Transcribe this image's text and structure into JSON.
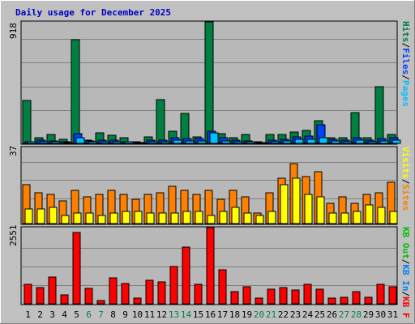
{
  "title": "Daily usage for December 2025",
  "colors": {
    "background": "#c0c0c0",
    "plot_bg": "#b8b8b8",
    "gridline": "#808080",
    "title": "#0000c0",
    "hits": "#008040",
    "files": "#0040ff",
    "pages": "#00c0ff",
    "visits": "#ffff00",
    "sites": "#ff8000",
    "kb_f": "#ff0000",
    "kb_in": "#0080ff",
    "kb_out": "#00c000",
    "weekend_day": "#008040",
    "weekday": "#000000"
  },
  "chart_data": [
    {
      "type": "bar",
      "name": "hits-files-pages",
      "ymax_label": "918",
      "ylim": [
        0,
        918
      ],
      "legend": [
        "Pages",
        "Files",
        "Hits"
      ],
      "categories": [
        "1",
        "2",
        "3",
        "4",
        "5",
        "6",
        "7",
        "8",
        "9",
        "10",
        "11",
        "12",
        "13",
        "14",
        "15",
        "16",
        "17",
        "18",
        "19",
        "20",
        "21",
        "22",
        "23",
        "24",
        "25",
        "26",
        "27",
        "28",
        "29",
        "30",
        "31"
      ],
      "weekend": [
        false,
        false,
        false,
        false,
        false,
        true,
        true,
        false,
        false,
        false,
        false,
        false,
        true,
        true,
        false,
        false,
        false,
        false,
        false,
        true,
        true,
        false,
        false,
        false,
        false,
        false,
        true,
        true,
        false,
        false,
        false
      ],
      "series": [
        {
          "name": "Hits",
          "color_key": "hits",
          "values": [
            325,
            40,
            70,
            30,
            785,
            25,
            80,
            60,
            45,
            15,
            50,
            330,
            90,
            225,
            50,
            918,
            75,
            40,
            70,
            10,
            65,
            65,
            85,
            95,
            170,
            45,
            40,
            235,
            45,
            430,
            70
          ]
        },
        {
          "name": "Files",
          "color_key": "files",
          "values": [
            15,
            25,
            20,
            10,
            75,
            20,
            25,
            25,
            15,
            8,
            25,
            25,
            45,
            35,
            35,
            90,
            40,
            25,
            20,
            8,
            25,
            30,
            50,
            55,
            140,
            30,
            25,
            40,
            25,
            35,
            40
          ]
        },
        {
          "name": "Pages",
          "color_key": "pages",
          "values": [
            10,
            15,
            15,
            8,
            40,
            12,
            15,
            15,
            10,
            5,
            15,
            15,
            25,
            20,
            20,
            80,
            20,
            15,
            12,
            5,
            15,
            20,
            30,
            30,
            45,
            20,
            15,
            25,
            15,
            20,
            25
          ]
        }
      ]
    },
    {
      "type": "bar",
      "name": "visits-sites",
      "ymax_label": "37",
      "ylim": [
        0,
        37
      ],
      "legend": [
        "Visits",
        "Sites"
      ],
      "categories": [
        "1",
        "2",
        "3",
        "4",
        "5",
        "6",
        "7",
        "8",
        "9",
        "10",
        "11",
        "12",
        "13",
        "14",
        "15",
        "16",
        "17",
        "18",
        "19",
        "20",
        "21",
        "22",
        "23",
        "24",
        "25",
        "26",
        "27",
        "28",
        "29",
        "30",
        "31"
      ],
      "series": [
        {
          "name": "Visits",
          "color_key": "visits",
          "values": [
            7,
            7,
            8,
            4,
            5,
            5,
            4,
            5,
            6,
            6,
            5,
            5,
            5,
            6,
            6,
            4,
            6,
            8,
            5,
            4,
            6,
            19,
            22,
            14,
            13,
            5,
            5,
            6,
            9,
            8,
            6
          ]
        },
        {
          "name": "Sites",
          "color_key": "sites",
          "values": [
            19,
            15,
            14,
            11,
            16,
            13,
            14,
            16,
            14,
            12,
            14,
            15,
            18,
            16,
            14,
            16,
            12,
            16,
            13,
            5,
            15,
            22,
            29,
            23,
            25,
            10,
            13,
            10,
            14,
            15,
            20
          ]
        }
      ]
    },
    {
      "type": "bar",
      "name": "kbytes",
      "ymax_label": "2551",
      "ylim": [
        0,
        2551
      ],
      "legend": [
        "KB F",
        "KB In",
        "KB Out"
      ],
      "categories": [
        "1",
        "2",
        "3",
        "4",
        "5",
        "6",
        "7",
        "8",
        "9",
        "10",
        "11",
        "12",
        "13",
        "14",
        "15",
        "16",
        "17",
        "18",
        "19",
        "20",
        "21",
        "22",
        "23",
        "24",
        "25",
        "26",
        "27",
        "28",
        "29",
        "30",
        "31"
      ],
      "series": [
        {
          "name": "KB F",
          "color_key": "kb_f",
          "values": [
            650,
            550,
            900,
            300,
            2380,
            520,
            120,
            880,
            680,
            200,
            780,
            730,
            1250,
            1900,
            650,
            2551,
            1150,
            400,
            580,
            200,
            480,
            550,
            470,
            650,
            500,
            180,
            210,
            400,
            220,
            650,
            580
          ]
        }
      ]
    }
  ]
}
